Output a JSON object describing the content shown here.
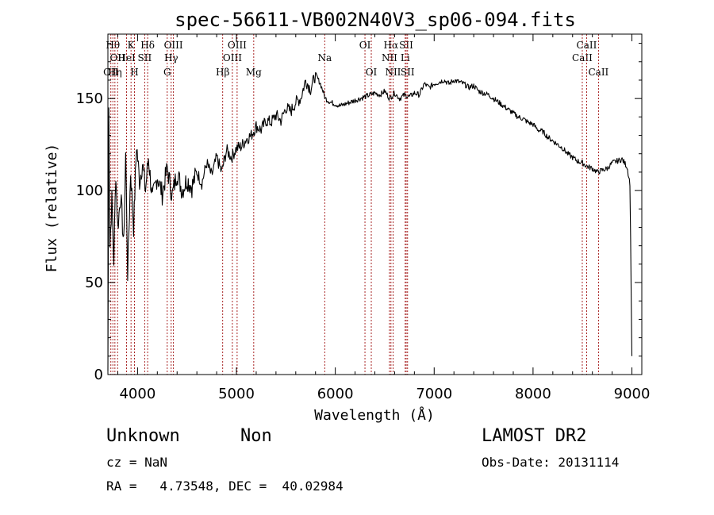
{
  "chart_data": {
    "type": "line",
    "title": "spec-56611-VB002N40V3_sp06-094.fits",
    "xlabel": "Wavelength (Å)",
    "ylabel": "Flux (relative)",
    "xlim": [
      3700,
      9100
    ],
    "ylim": [
      0,
      185
    ],
    "x_ticks": [
      4000,
      5000,
      6000,
      7000,
      8000,
      9000
    ],
    "y_ticks": [
      0,
      50,
      100,
      150
    ],
    "grid": false,
    "line_color": "#000000",
    "marker_color": "#a01010",
    "series": [
      {
        "x": [
          3700,
          3710,
          3720,
          3740,
          3760,
          3780,
          3800,
          3830,
          3860,
          3880,
          3900,
          3930,
          3960,
          3990,
          4020,
          4050,
          4080,
          4110,
          4150,
          4200,
          4250,
          4300,
          4350,
          4400,
          4450,
          4500,
          4550,
          4600,
          4650,
          4700,
          4750,
          4800,
          4850,
          4900,
          4950,
          5000,
          5050,
          5100,
          5150,
          5200,
          5250,
          5300,
          5350,
          5400,
          5450,
          5500,
          5550,
          5600,
          5650,
          5700,
          5750,
          5800,
          5850,
          5900,
          5950,
          6000,
          6050,
          6100,
          6150,
          6200,
          6250,
          6300,
          6350,
          6400,
          6450,
          6500,
          6550,
          6600,
          6650,
          6700,
          6750,
          6800,
          6850,
          6900,
          6950,
          7000,
          7050,
          7100,
          7150,
          7200,
          7250,
          7300,
          7350,
          7400,
          7450,
          7500,
          7550,
          7600,
          7650,
          7700,
          7750,
          7800,
          7850,
          7900,
          7950,
          8000,
          8050,
          8100,
          8150,
          8200,
          8250,
          8300,
          8350,
          8400,
          8450,
          8500,
          8550,
          8600,
          8650,
          8700,
          8750,
          8800,
          8850,
          8900,
          8950,
          8980,
          9000
        ],
        "y": [
          2,
          145,
          70,
          95,
          62,
          110,
          80,
          98,
          70,
          120,
          55,
          110,
          80,
          125,
          105,
          115,
          100,
          118,
          95,
          108,
          98,
          112,
          97,
          110,
          100,
          106,
          102,
          110,
          104,
          115,
          108,
          118,
          110,
          122,
          118,
          123,
          124,
          128,
          130,
          135,
          133,
          138,
          137,
          141,
          138,
          145,
          143,
          148,
          150,
          160,
          155,
          163,
          158,
          150,
          148,
          147,
          146,
          147,
          148,
          149,
          150,
          151,
          152,
          153,
          152,
          154,
          150,
          153,
          150,
          152,
          151,
          153,
          152,
          158,
          156,
          158,
          159,
          160,
          158,
          160,
          159,
          158,
          156,
          157,
          154,
          153,
          152,
          150,
          148,
          146,
          144,
          142,
          140,
          139,
          137,
          136,
          133,
          132,
          129,
          127,
          125,
          123,
          120,
          118,
          116,
          115,
          113,
          112,
          110,
          111,
          112,
          115,
          116,
          117,
          113,
          104,
          10
        ]
      }
    ],
    "line_markers": [
      {
        "wl": 3730,
        "label": "OII",
        "row": 3
      },
      {
        "wl": 3750,
        "label": "Hθ",
        "row": 1
      },
      {
        "wl": 3771,
        "label": "Hη",
        "row": 3
      },
      {
        "wl": 3798,
        "label": "OII",
        "row": 2
      },
      {
        "wl": 3889,
        "label": "HeI",
        "row": 2
      },
      {
        "wl": 3934,
        "label": "K",
        "row": 1
      },
      {
        "wl": 3969,
        "label": "H",
        "row": 3
      },
      {
        "wl": 4072,
        "label": "SII",
        "row": 2
      },
      {
        "wl": 4102,
        "label": "Hδ",
        "row": 1
      },
      {
        "wl": 4300,
        "label": "G",
        "row": 3
      },
      {
        "wl": 4340,
        "label": "Hγ",
        "row": 2
      },
      {
        "wl": 4363,
        "label": "OIII",
        "row": 1
      },
      {
        "wl": 4861,
        "label": "Hβ",
        "row": 3
      },
      {
        "wl": 4959,
        "label": "OIII",
        "row": 2
      },
      {
        "wl": 5007,
        "label": "OIII",
        "row": 1
      },
      {
        "wl": 5175,
        "label": "Mg",
        "row": 3
      },
      {
        "wl": 5893,
        "label": "Na",
        "row": 2
      },
      {
        "wl": 6300,
        "label": "OI",
        "row": 1
      },
      {
        "wl": 6364,
        "label": "OI",
        "row": 3
      },
      {
        "wl": 6548,
        "label": "NII",
        "row": 2
      },
      {
        "wl": 6563,
        "label": "Hα",
        "row": 1
      },
      {
        "wl": 6584,
        "label": "NII",
        "row": 3
      },
      {
        "wl": 6707,
        "label": "Li",
        "row": 2
      },
      {
        "wl": 6717,
        "label": "SII",
        "row": 1
      },
      {
        "wl": 6731,
        "label": "SII",
        "row": 3
      },
      {
        "wl": 8498,
        "label": "CaII",
        "row": 2
      },
      {
        "wl": 8542,
        "label": "CaII",
        "row": 1
      },
      {
        "wl": 8662,
        "label": "CaII",
        "row": 3
      }
    ]
  },
  "info": {
    "class": "Unknown",
    "subclass": "Non",
    "survey": "LAMOST DR2",
    "redshift": "cz = NaN",
    "obs_date": "Obs-Date: 20131114",
    "coords": "RA =   4.73548, DEC =  40.02984"
  }
}
